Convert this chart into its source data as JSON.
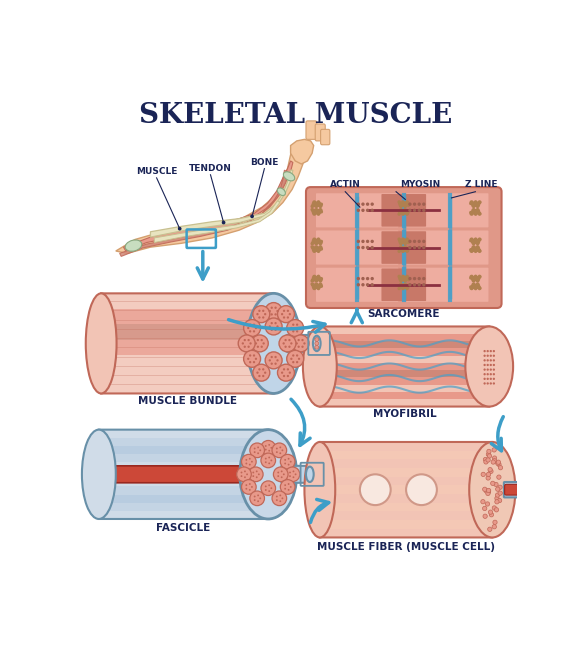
{
  "title": "SKELETAL MUSCLE",
  "title_color": "#1a2456",
  "title_fontsize": 20,
  "bg_color": "#ffffff",
  "muscle_pink": "#e8998a",
  "muscle_pink_light": "#f2c4b5",
  "muscle_pink_dark": "#c06858",
  "muscle_pink_med": "#d08878",
  "muscle_body": "#e8a090",
  "blue_outline": "#4a9fc8",
  "blue_arrow": "#3d9ec8",
  "gray_light": "#c0d5e8",
  "gray_med": "#88aac0",
  "gray_dark": "#6890a8",
  "bone_color": "#e8e4c0",
  "bone_edge": "#c8c090",
  "skin_color": "#f5c9a0",
  "skin_edge": "#d4a070",
  "tendon_color": "#c8ddc0",
  "tendon_edge": "#88a880",
  "dark_red": "#8B3030",
  "label_color": "#1a2456",
  "label_fs": 7.5,
  "ann_fs": 6.5,
  "sarcomere_bg": "#e09888",
  "sarcomere_light": "#eeada0",
  "sarcomere_dark": "#c87868",
  "actin_color": "#a06050",
  "myosin_line": "#8B3040",
  "z_line_color": "#4a9fc8",
  "chain_color": "#b08050",
  "section_labels": {
    "muscle_bundle": "MUSCLE BUNDLE",
    "fascicle": "FASCICLE",
    "myofibril": "MYOFIBRIL",
    "muscle_fiber": "MUSCLE FIBER (MUSCLE CELL)",
    "sarcomere": "SARCOMERE",
    "muscle": "MUSCLE",
    "bone": "BONE",
    "tendon": "TENDON",
    "actin": "ACTIN",
    "myosin": "MYOSIN",
    "z_line": "Z LINE"
  }
}
